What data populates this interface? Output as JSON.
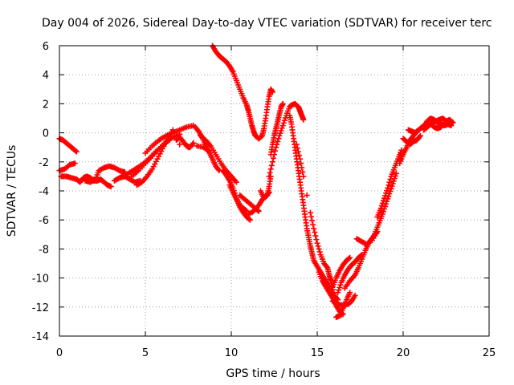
{
  "chart_data": {
    "type": "scatter",
    "title": "Day 004 of 2026, Sidereal Day-to-day VTEC variation (SDTVAR) for receiver terc",
    "xlabel": "GPS time / hours",
    "ylabel": "SDTVAR / TECUs",
    "xlim": [
      0,
      25
    ],
    "ylim": [
      -14,
      6
    ],
    "xticks": [
      0,
      5,
      10,
      15,
      20,
      25
    ],
    "yticks": [
      -14,
      -12,
      -10,
      -8,
      -6,
      -4,
      -2,
      0,
      2,
      4,
      6
    ],
    "grid": true,
    "marker": "+",
    "color": "#ff0000",
    "series": [
      {
        "points": [
          [
            0.0,
            -0.4
          ],
          [
            0.2,
            -0.5
          ],
          [
            0.4,
            -0.7
          ],
          [
            0.6,
            -0.9
          ],
          [
            0.8,
            -1.1
          ],
          [
            1.0,
            -1.3
          ],
          [
            0.0,
            -2.6
          ],
          [
            0.3,
            -2.5
          ],
          [
            0.6,
            -2.2
          ],
          [
            0.9,
            -2.1
          ],
          [
            0.1,
            -3.0
          ],
          [
            0.4,
            -3.0
          ],
          [
            0.7,
            -3.1
          ],
          [
            1.0,
            -3.2
          ],
          [
            1.2,
            -3.4
          ],
          [
            1.4,
            -3.1
          ],
          [
            1.6,
            -3.0
          ],
          [
            1.8,
            -3.1
          ],
          [
            2.0,
            -3.3
          ],
          [
            2.2,
            -3.3
          ],
          [
            2.4,
            -3.2
          ],
          [
            2.6,
            -3.4
          ],
          [
            2.8,
            -3.6
          ],
          [
            3.0,
            -3.7
          ],
          [
            1.5,
            -3.3
          ],
          [
            1.8,
            -3.4
          ],
          [
            2.1,
            -3.2
          ],
          [
            2.3,
            -2.6
          ],
          [
            2.6,
            -2.4
          ],
          [
            2.9,
            -2.3
          ],
          [
            3.2,
            -2.4
          ],
          [
            3.5,
            -2.6
          ],
          [
            3.8,
            -2.7
          ],
          [
            3.2,
            -3.3
          ],
          [
            3.5,
            -3.1
          ],
          [
            3.8,
            -3.0
          ],
          [
            4.1,
            -3.2
          ],
          [
            4.4,
            -3.4
          ],
          [
            4.7,
            -3.3
          ],
          [
            3.6,
            -3.0
          ],
          [
            4.0,
            -2.8
          ],
          [
            4.4,
            -2.5
          ],
          [
            4.8,
            -2.2
          ],
          [
            5.2,
            -1.8
          ],
          [
            5.6,
            -1.3
          ],
          [
            6.0,
            -0.9
          ],
          [
            6.4,
            -0.5
          ],
          [
            4.5,
            -3.6
          ],
          [
            4.8,
            -3.4
          ],
          [
            5.1,
            -3.0
          ],
          [
            5.4,
            -2.5
          ],
          [
            5.7,
            -1.8
          ],
          [
            6.0,
            -1.1
          ],
          [
            6.3,
            -0.4
          ],
          [
            6.6,
            0.2
          ],
          [
            4.2,
            -3.0
          ],
          [
            4.6,
            -2.6
          ],
          [
            5.0,
            -2.1
          ],
          [
            5.4,
            -1.6
          ],
          [
            5.8,
            -1.1
          ],
          [
            6.2,
            -0.6
          ],
          [
            6.6,
            -0.3
          ],
          [
            7.0,
            -0.1
          ],
          [
            5.0,
            -1.4
          ],
          [
            5.4,
            -0.9
          ],
          [
            5.8,
            -0.5
          ],
          [
            6.2,
            -0.2
          ],
          [
            6.6,
            0.0
          ],
          [
            7.0,
            0.2
          ],
          [
            7.4,
            0.4
          ],
          [
            7.8,
            0.5
          ],
          [
            6.8,
            -0.5
          ],
          [
            7.0,
            -0.3
          ],
          [
            7.2,
            -0.6
          ],
          [
            7.4,
            -0.9
          ],
          [
            7.6,
            -1.0
          ],
          [
            7.8,
            -0.7
          ],
          [
            7.0,
            -0.8
          ],
          [
            7.5,
            -1.0
          ],
          [
            8.0,
            -0.9
          ],
          [
            8.4,
            -1.0
          ],
          [
            8.7,
            -1.3
          ],
          [
            7.9,
            0.4
          ],
          [
            8.1,
            0.1
          ],
          [
            8.3,
            -0.3
          ],
          [
            8.5,
            -0.8
          ],
          [
            8.7,
            -1.3
          ],
          [
            8.9,
            -1.8
          ],
          [
            9.1,
            -2.3
          ],
          [
            9.3,
            -2.6
          ],
          [
            8.2,
            -0.2
          ],
          [
            8.5,
            -0.5
          ],
          [
            8.8,
            -0.9
          ],
          [
            9.1,
            -1.5
          ],
          [
            9.4,
            -2.1
          ],
          [
            9.7,
            -2.6
          ],
          [
            10.0,
            -3.0
          ],
          [
            10.3,
            -3.4
          ],
          [
            9.5,
            -2.6
          ],
          [
            9.7,
            -2.9
          ],
          [
            9.9,
            -3.3
          ],
          [
            10.1,
            -3.8
          ],
          [
            10.3,
            -4.5
          ],
          [
            10.5,
            -5.0
          ],
          [
            10.7,
            -5.2
          ],
          [
            10.9,
            -5.4
          ],
          [
            9.9,
            -3.6
          ],
          [
            10.1,
            -4.1
          ],
          [
            10.3,
            -4.6
          ],
          [
            10.5,
            -5.1
          ],
          [
            10.7,
            -5.5
          ],
          [
            10.9,
            -5.8
          ],
          [
            11.1,
            -6.0
          ],
          [
            10.5,
            -4.3
          ],
          [
            10.8,
            -4.6
          ],
          [
            11.1,
            -4.9
          ],
          [
            11.4,
            -5.2
          ],
          [
            11.6,
            -5.4
          ],
          [
            11.0,
            -5.6
          ],
          [
            11.3,
            -5.4
          ],
          [
            11.6,
            -5.0
          ],
          [
            11.8,
            -4.6
          ],
          [
            12.0,
            -4.4
          ],
          [
            12.2,
            -4.1
          ],
          [
            11.7,
            -4.0
          ],
          [
            11.9,
            -4.5
          ],
          [
            12.1,
            -4.3
          ],
          [
            12.2,
            -3.7
          ],
          [
            12.3,
            -3.0
          ],
          [
            8.9,
            6.0
          ],
          [
            9.1,
            5.6
          ],
          [
            9.3,
            5.3
          ],
          [
            9.5,
            5.1
          ],
          [
            9.7,
            4.9
          ],
          [
            9.9,
            4.6
          ],
          [
            10.1,
            4.2
          ],
          [
            10.3,
            3.6
          ],
          [
            10.5,
            3.0
          ],
          [
            10.7,
            2.4
          ],
          [
            10.9,
            1.9
          ],
          [
            11.0,
            1.5
          ],
          [
            11.1,
            1.0
          ],
          [
            11.2,
            0.5
          ],
          [
            11.3,
            0.1
          ],
          [
            11.4,
            -0.2
          ],
          [
            11.6,
            -0.4
          ],
          [
            11.8,
            -0.2
          ],
          [
            11.9,
            0.3
          ],
          [
            12.0,
            1.0
          ],
          [
            12.1,
            1.8
          ],
          [
            12.2,
            2.5
          ],
          [
            12.3,
            3.0
          ],
          [
            12.4,
            2.8
          ],
          [
            12.3,
            -1.5
          ],
          [
            12.4,
            -0.8
          ],
          [
            12.5,
            -0.2
          ],
          [
            12.6,
            0.3
          ],
          [
            12.7,
            0.8
          ],
          [
            12.8,
            1.3
          ],
          [
            12.9,
            1.8
          ],
          [
            13.0,
            2.0
          ],
          [
            12.2,
            -3.0
          ],
          [
            12.4,
            -2.0
          ],
          [
            12.6,
            -1.0
          ],
          [
            12.8,
            -0.2
          ],
          [
            13.0,
            0.5
          ],
          [
            13.2,
            1.2
          ],
          [
            13.4,
            1.8
          ],
          [
            13.5,
            1.9
          ],
          [
            13.7,
            2.0
          ],
          [
            13.9,
            1.8
          ],
          [
            14.0,
            1.5
          ],
          [
            14.1,
            1.2
          ],
          [
            14.2,
            0.9
          ],
          [
            13.4,
            1.2
          ],
          [
            13.5,
            0.6
          ],
          [
            13.6,
            -0.2
          ],
          [
            13.7,
            -1.0
          ],
          [
            13.8,
            -1.8
          ],
          [
            13.9,
            -2.6
          ],
          [
            14.0,
            -3.4
          ],
          [
            14.1,
            -4.2
          ],
          [
            14.2,
            -5.0
          ],
          [
            14.3,
            -5.8
          ],
          [
            14.4,
            -6.6
          ],
          [
            14.5,
            -7.2
          ],
          [
            14.6,
            -7.8
          ],
          [
            14.7,
            -8.3
          ],
          [
            14.8,
            -8.8
          ],
          [
            15.0,
            -9.2
          ],
          [
            15.2,
            -9.6
          ],
          [
            15.4,
            -10.0
          ],
          [
            15.6,
            -10.4
          ],
          [
            15.8,
            -10.8
          ],
          [
            16.0,
            -11.2
          ],
          [
            16.2,
            -11.5
          ],
          [
            13.8,
            -0.8
          ],
          [
            14.0,
            -1.8
          ],
          [
            14.2,
            -3.0
          ],
          [
            14.4,
            -4.3
          ],
          [
            14.6,
            -5.5
          ],
          [
            14.8,
            -6.6
          ],
          [
            15.0,
            -7.6
          ],
          [
            15.2,
            -8.4
          ],
          [
            15.4,
            -9.0
          ],
          [
            15.6,
            -9.3
          ],
          [
            15.7,
            -9.8
          ],
          [
            15.8,
            -10.2
          ],
          [
            15.9,
            -10.8
          ],
          [
            15.1,
            -9.6
          ],
          [
            15.3,
            -10.2
          ],
          [
            15.5,
            -10.6
          ],
          [
            15.7,
            -11.0
          ],
          [
            15.9,
            -11.4
          ],
          [
            16.1,
            -11.9
          ],
          [
            16.3,
            -12.3
          ],
          [
            16.5,
            -12.5
          ],
          [
            16.1,
            -12.7
          ],
          [
            16.3,
            -12.6
          ],
          [
            16.5,
            -12.1
          ],
          [
            16.7,
            -11.5
          ],
          [
            16.9,
            -11.0
          ],
          [
            15.9,
            -11.6
          ],
          [
            16.2,
            -11.8
          ],
          [
            16.5,
            -11.9
          ],
          [
            16.8,
            -11.8
          ],
          [
            17.0,
            -11.6
          ],
          [
            17.2,
            -11.2
          ],
          [
            16.2,
            -11.0
          ],
          [
            16.4,
            -10.3
          ],
          [
            16.6,
            -9.8
          ],
          [
            16.8,
            -9.4
          ],
          [
            17.0,
            -9.1
          ],
          [
            17.2,
            -8.9
          ],
          [
            17.4,
            -8.6
          ],
          [
            17.6,
            -8.4
          ],
          [
            15.9,
            -10.6
          ],
          [
            16.1,
            -10.0
          ],
          [
            16.3,
            -9.5
          ],
          [
            16.5,
            -9.1
          ],
          [
            16.7,
            -8.8
          ],
          [
            16.9,
            -8.6
          ],
          [
            16.6,
            -10.7
          ],
          [
            16.9,
            -10.2
          ],
          [
            17.2,
            -9.8
          ],
          [
            17.4,
            -9.3
          ],
          [
            17.6,
            -8.7
          ],
          [
            17.8,
            -8.1
          ],
          [
            18.0,
            -7.6
          ],
          [
            17.3,
            -7.3
          ],
          [
            17.6,
            -7.5
          ],
          [
            17.9,
            -7.7
          ],
          [
            18.1,
            -7.4
          ],
          [
            18.3,
            -7.1
          ],
          [
            18.5,
            -6.8
          ],
          [
            18.2,
            -7.4
          ],
          [
            18.4,
            -6.8
          ],
          [
            18.6,
            -6.2
          ],
          [
            18.8,
            -5.6
          ],
          [
            19.0,
            -4.9
          ],
          [
            19.2,
            -4.2
          ],
          [
            19.4,
            -3.5
          ],
          [
            19.6,
            -2.8
          ],
          [
            18.5,
            -5.8
          ],
          [
            18.7,
            -5.2
          ],
          [
            18.9,
            -4.5
          ],
          [
            19.1,
            -3.8
          ],
          [
            19.3,
            -3.0
          ],
          [
            19.5,
            -2.4
          ],
          [
            19.7,
            -1.8
          ],
          [
            19.9,
            -1.2
          ],
          [
            19.8,
            -2.1
          ],
          [
            20.0,
            -1.5
          ],
          [
            20.2,
            -1.0
          ],
          [
            20.4,
            -0.5
          ],
          [
            20.6,
            -0.2
          ],
          [
            20.8,
            0.1
          ],
          [
            20.0,
            -0.4
          ],
          [
            20.2,
            -0.6
          ],
          [
            20.4,
            -0.8
          ],
          [
            20.6,
            -0.6
          ],
          [
            20.8,
            -0.5
          ],
          [
            21.0,
            -0.2
          ],
          [
            20.3,
            0.2
          ],
          [
            20.5,
            0.1
          ],
          [
            20.7,
            0.0
          ],
          [
            20.9,
            0.2
          ],
          [
            21.1,
            0.4
          ],
          [
            21.3,
            0.6
          ],
          [
            21.4,
            0.8
          ],
          [
            21.6,
            1.0
          ],
          [
            21.8,
            0.9
          ],
          [
            22.0,
            0.7
          ],
          [
            22.2,
            0.6
          ],
          [
            22.4,
            0.5
          ],
          [
            22.6,
            0.6
          ],
          [
            22.8,
            0.5
          ],
          [
            21.5,
            0.5
          ],
          [
            21.7,
            0.7
          ],
          [
            21.9,
            0.8
          ],
          [
            22.1,
            0.9
          ],
          [
            22.3,
            1.0
          ],
          [
            22.5,
            0.8
          ],
          [
            22.7,
            0.9
          ],
          [
            22.9,
            0.7
          ],
          [
            21.2,
            0.2
          ],
          [
            21.4,
            0.4
          ],
          [
            21.6,
            0.6
          ],
          [
            21.8,
            0.4
          ],
          [
            22.0,
            0.3
          ],
          [
            22.2,
            0.4
          ],
          [
            22.4,
            0.7
          ],
          [
            22.6,
            0.8
          ]
        ]
      }
    ]
  }
}
